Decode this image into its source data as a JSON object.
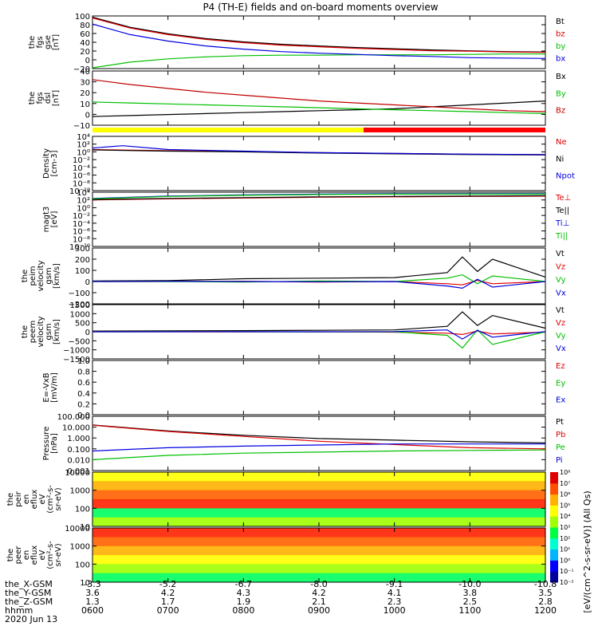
{
  "title": "P4 (TH-E) fields and on-board moments overview",
  "ephemeris": {
    "row_labels": [
      "the_X-GSM",
      "the_Y-GSM",
      "the_Z-GSM",
      "hhmm",
      "2020 Jun 13"
    ],
    "columns": [
      {
        "x": "-3.3",
        "y": "3.6",
        "z": "1.3",
        "t": "0600"
      },
      {
        "x": "-5.2",
        "y": "4.2",
        "z": "1.7",
        "t": "0700"
      },
      {
        "x": "-6.7",
        "y": "4.3",
        "z": "1.9",
        "t": "0800"
      },
      {
        "x": "-8.0",
        "y": "4.2",
        "z": "2.1",
        "t": "0900"
      },
      {
        "x": "-9.1",
        "y": "4.1",
        "z": "2.3",
        "t": "1000"
      },
      {
        "x": "-10.0",
        "y": "3.8",
        "z": "2.5",
        "t": "1100"
      },
      {
        "x": "-10.8",
        "y": "3.5",
        "z": "2.8",
        "t": "1200"
      }
    ]
  },
  "colorbar": {
    "label": "[eV/(cm^2-s-sr-eV)] (All Qs)",
    "colors": [
      "#0000a0",
      "#0000ff",
      "#00b4ff",
      "#00ffd0",
      "#00ff40",
      "#a0ff00",
      "#ffff00",
      "#ffb000",
      "#ff5000",
      "#e00000"
    ],
    "ticks": [
      "10⁸",
      "10⁷",
      "10⁶",
      "10⁵",
      "10⁴",
      "10³",
      "10²",
      "10¹",
      "10⁰",
      "10⁻¹",
      "10⁻²"
    ]
  },
  "chart_data": [
    {
      "type": "line",
      "panel": "fgs_gse",
      "ylabel_lines": [
        "the",
        "fgs",
        "gse",
        "[nT]"
      ],
      "yticks": [
        "100",
        "80",
        "60",
        "40",
        "20",
        "0",
        "−20"
      ],
      "ylim": [
        -30,
        100
      ],
      "series": [
        {
          "name": "Bt",
          "color": "#000000",
          "x": [
            6.0,
            6.5,
            7.0,
            7.5,
            8.0,
            8.5,
            9.0,
            9.5,
            10.0,
            10.5,
            11.0,
            11.5,
            12.0
          ],
          "y": [
            97,
            72,
            56,
            44,
            36,
            30,
            26,
            22,
            19,
            16,
            14,
            12,
            11
          ]
        },
        {
          "name": "bz",
          "color": "#e00000",
          "x": [
            6.0,
            6.5,
            7.0,
            7.5,
            8.0,
            8.5,
            9.0,
            9.5,
            10.0,
            10.5,
            11.0,
            11.5,
            12.0
          ],
          "y": [
            95,
            70,
            54,
            42,
            34,
            28,
            24,
            20,
            17,
            14,
            13,
            11,
            10
          ]
        },
        {
          "name": "by",
          "color": "#00c000",
          "x": [
            6.0,
            6.5,
            7.0,
            7.5,
            8.0,
            8.5,
            9.0,
            9.5,
            10.0,
            10.5,
            11.0,
            11.5,
            12.0
          ],
          "y": [
            -28,
            -14,
            -6,
            -1,
            2,
            3,
            3,
            4,
            4,
            4,
            5,
            6,
            6
          ]
        },
        {
          "name": "bx",
          "color": "#0000e0",
          "x": [
            6.0,
            6.5,
            7.0,
            7.5,
            8.0,
            8.5,
            9.0,
            9.5,
            10.0,
            10.5,
            11.0,
            11.5,
            12.0
          ],
          "y": [
            80,
            54,
            38,
            26,
            18,
            12,
            8,
            5,
            2,
            0,
            -3,
            -4,
            -5
          ]
        }
      ]
    },
    {
      "type": "line",
      "panel": "fgs_dsl",
      "ylabel_lines": [
        "the",
        "fgs",
        "dsl",
        "[nT]"
      ],
      "yticks": [
        "40",
        "30",
        "20",
        "10",
        "0",
        "−10"
      ],
      "ylim": [
        -16,
        40
      ],
      "series": [
        {
          "name": "Bx",
          "color": "#000000",
          "x": [
            6.0,
            6.5,
            7.0,
            7.5,
            8.0,
            8.5,
            9.0,
            9.5,
            10.0,
            10.5,
            11.0,
            11.5,
            12.0
          ],
          "y": [
            -7,
            -6,
            -5,
            -4,
            -3,
            -2,
            -1,
            0,
            1,
            3,
            5,
            7,
            9
          ]
        },
        {
          "name": "By",
          "color": "#00c000",
          "x": [
            6.0,
            6.5,
            7.0,
            7.5,
            8.0,
            8.5,
            9.0,
            9.5,
            10.0,
            10.5,
            11.0,
            11.5,
            12.0
          ],
          "y": [
            8,
            7,
            6,
            5,
            4,
            3,
            2,
            1,
            0,
            -1,
            -2,
            -3,
            -4
          ]
        },
        {
          "name": "Bz",
          "color": "#c00000",
          "x": [
            6.0,
            6.5,
            7.0,
            7.5,
            8.0,
            8.5,
            9.0,
            9.5,
            10.0,
            10.5,
            11.0,
            11.5,
            12.0
          ],
          "y": [
            31,
            26,
            22,
            18,
            15,
            12,
            9,
            7,
            5,
            3,
            1,
            -1,
            -2
          ]
        }
      ]
    },
    {
      "type": "line",
      "panel": "density",
      "ylabel_lines": [
        "Density",
        "[cm-3]"
      ],
      "yticks": [
        "10⁴",
        "10²",
        "10⁰",
        "10⁻²",
        "10⁻⁴",
        "10⁻⁶",
        "10⁻⁸",
        "10⁻¹⁰"
      ],
      "ylim": [
        -10,
        4
      ],
      "yscale": "log",
      "series": [
        {
          "name": "Ne",
          "color": "#e00000",
          "x": [
            6.0,
            7.0,
            8.0,
            9.0,
            10.0,
            11.0,
            12.0
          ],
          "y": [
            0.6,
            0.3,
            0.1,
            -0.2,
            -0.4,
            -0.6,
            -0.7
          ]
        },
        {
          "name": "Ni",
          "color": "#000000",
          "x": [
            6.0,
            7.0,
            8.0,
            9.0,
            10.0,
            11.0,
            12.0
          ],
          "y": [
            0.5,
            0.2,
            0.0,
            -0.3,
            -0.5,
            -0.7,
            -0.8
          ]
        },
        {
          "name": "Npot",
          "color": "#0000e0",
          "x": [
            6.0,
            6.4,
            7.0,
            8.0,
            9.0,
            10.0,
            11.0,
            12.0
          ],
          "y": [
            1.0,
            1.6,
            0.6,
            0.2,
            -0.2,
            -0.4,
            -0.6,
            -0.7
          ]
        }
      ]
    },
    {
      "type": "line",
      "panel": "temperature",
      "ylabel_lines": [
        "magt3",
        "[eV]"
      ],
      "yticks": [
        "10⁴",
        "10²",
        "10⁰",
        "10⁻²",
        "10⁻⁴",
        "10⁻⁶",
        "10⁻⁸",
        "10⁻¹⁰"
      ],
      "ylim": [
        -10,
        4
      ],
      "yscale": "log",
      "series": [
        {
          "name": "Te⊥",
          "color": "#e00000",
          "x": [
            6.0,
            7.0,
            8.0,
            9.0,
            10.0,
            11.0,
            12.0
          ],
          "y": [
            2.0,
            2.3,
            2.5,
            2.7,
            2.8,
            2.9,
            3.0
          ]
        },
        {
          "name": "Te||",
          "color": "#000000",
          "x": [
            6.0,
            7.0,
            8.0,
            9.0,
            10.0,
            11.0,
            12.0
          ],
          "y": [
            2.1,
            2.4,
            2.6,
            2.8,
            2.9,
            3.0,
            3.1
          ]
        },
        {
          "name": "Ti⊥",
          "color": "#0000e0",
          "x": [
            6.0,
            7.0,
            8.0,
            9.0,
            10.0,
            11.0,
            12.0
          ],
          "y": [
            2.4,
            3.0,
            3.3,
            3.5,
            3.6,
            3.6,
            3.6
          ]
        },
        {
          "name": "Ti||",
          "color": "#00c000",
          "x": [
            6.0,
            7.0,
            8.0,
            9.0,
            10.0,
            11.0,
            12.0
          ],
          "y": [
            2.3,
            2.9,
            3.2,
            3.4,
            3.5,
            3.5,
            3.5
          ]
        }
      ]
    },
    {
      "type": "line",
      "panel": "peim_velocity",
      "ylabel_lines": [
        "the",
        "peim",
        "velocity",
        "gsm",
        "[km/s]"
      ],
      "yticks": [
        "300",
        "200",
        "100",
        "0",
        "−100",
        "−200"
      ],
      "ylim": [
        -200,
        300
      ],
      "series": [
        {
          "name": "Vt",
          "color": "#000000",
          "x": [
            6.0,
            7.0,
            8.0,
            9.0,
            10.0,
            10.7,
            10.9,
            11.1,
            11.3,
            12.0
          ],
          "y": [
            5,
            8,
            25,
            30,
            35,
            80,
            220,
            90,
            200,
            40
          ]
        },
        {
          "name": "Vz",
          "color": "#e00000",
          "x": [
            6.0,
            7.0,
            8.0,
            9.0,
            10.0,
            10.7,
            10.9,
            11.1,
            11.3,
            12.0
          ],
          "y": [
            0,
            0,
            2,
            -5,
            0,
            -20,
            -30,
            10,
            -20,
            0
          ]
        },
        {
          "name": "Vy",
          "color": "#00c000",
          "x": [
            6.0,
            7.0,
            8.0,
            9.0,
            10.0,
            10.7,
            10.9,
            11.1,
            11.3,
            12.0
          ],
          "y": [
            0,
            0,
            -5,
            5,
            0,
            30,
            60,
            -20,
            50,
            0
          ]
        },
        {
          "name": "Vx",
          "color": "#0000e0",
          "x": [
            6.0,
            7.0,
            8.0,
            9.0,
            10.0,
            10.7,
            10.9,
            11.1,
            11.3,
            12.0
          ],
          "y": [
            0,
            2,
            0,
            -2,
            0,
            -40,
            -60,
            20,
            -50,
            0
          ]
        }
      ]
    },
    {
      "type": "line",
      "panel": "peem_velocity",
      "ylabel_lines": [
        "the",
        "peem",
        "velocity",
        "gsm",
        "[km/s]"
      ],
      "yticks": [
        "1500",
        "1000",
        "500",
        "0",
        "−500",
        "−1000",
        "−1500"
      ],
      "ylim": [
        -1500,
        1500
      ],
      "series": [
        {
          "name": "Vt",
          "color": "#000000",
          "x": [
            6.0,
            7.0,
            8.0,
            9.0,
            10.0,
            10.7,
            10.9,
            11.1,
            11.3,
            12.0
          ],
          "y": [
            40,
            50,
            60,
            80,
            100,
            300,
            1100,
            350,
            900,
            200
          ]
        },
        {
          "name": "Vz",
          "color": "#e00000",
          "x": [
            6.0,
            7.0,
            8.0,
            9.0,
            10.0,
            10.7,
            10.9,
            11.1,
            11.3,
            12.0
          ],
          "y": [
            0,
            0,
            -10,
            0,
            -20,
            -80,
            -150,
            40,
            -120,
            -20
          ]
        },
        {
          "name": "Vy",
          "color": "#00c000",
          "x": [
            6.0,
            7.0,
            8.0,
            9.0,
            10.0,
            10.7,
            10.9,
            11.1,
            11.3,
            12.0
          ],
          "y": [
            0,
            5,
            0,
            -10,
            0,
            -200,
            -900,
            100,
            -700,
            0
          ]
        },
        {
          "name": "Vx",
          "color": "#0000e0",
          "x": [
            6.0,
            7.0,
            8.0,
            9.0,
            10.0,
            10.7,
            10.9,
            11.1,
            11.3,
            12.0
          ],
          "y": [
            0,
            0,
            5,
            0,
            10,
            100,
            -400,
            80,
            -300,
            10
          ]
        }
      ]
    },
    {
      "type": "line",
      "panel": "efield",
      "ylabel_lines": [
        "E=-VxB",
        "[mV/m]"
      ],
      "yticks": [
        "1.0",
        "0.8",
        "0.6",
        "0.4",
        "0.2",
        "0.0"
      ],
      "ylim": [
        0,
        1
      ],
      "legend": [
        {
          "name": "Ez",
          "color": "#e00000"
        },
        {
          "name": "Ey",
          "color": "#00c000"
        },
        {
          "name": "Ex",
          "color": "#0000e0"
        }
      ],
      "series": []
    },
    {
      "type": "line",
      "panel": "pressure",
      "ylabel_lines": [
        "Pressure",
        "[nPa]"
      ],
      "yticks": [
        "100.000",
        "10.000",
        "1.000",
        "0.100",
        "0.010",
        "0.001"
      ],
      "ylim": [
        -3,
        2
      ],
      "yscale": "log",
      "series": [
        {
          "name": "Pt",
          "color": "#000000",
          "x": [
            6.0,
            7.0,
            8.0,
            9.0,
            10.0,
            11.0,
            12.0
          ],
          "y": [
            1.2,
            0.65,
            0.25,
            -0.05,
            -0.2,
            -0.35,
            -0.45
          ]
        },
        {
          "name": "Pb",
          "color": "#e00000",
          "x": [
            6.0,
            7.0,
            8.0,
            9.0,
            10.0,
            11.0,
            12.0
          ],
          "y": [
            1.18,
            0.6,
            0.15,
            -0.3,
            -0.6,
            -0.9,
            -1.0
          ]
        },
        {
          "name": "Pe",
          "color": "#00c000",
          "x": [
            6.0,
            7.0,
            8.0,
            9.0,
            10.0,
            11.0,
            12.0
          ],
          "y": [
            -2.0,
            -1.6,
            -1.4,
            -1.3,
            -1.2,
            -1.15,
            -1.1
          ]
        },
        {
          "name": "Pi",
          "color": "#0000e0",
          "x": [
            6.0,
            7.0,
            8.0,
            9.0,
            10.0,
            11.0,
            12.0
          ],
          "y": [
            -1.2,
            -0.9,
            -0.75,
            -0.65,
            -0.55,
            -0.55,
            -0.55
          ]
        }
      ]
    },
    {
      "type": "heatmap",
      "panel": "peir_spectrogram",
      "ylabel_lines": [
        "the",
        "peir",
        "en",
        "eflux",
        "eV",
        "(cm²-s-",
        "sr-eV)"
      ],
      "yticks": [
        "10000",
        "1000",
        "100",
        "10"
      ],
      "ylim": [
        1,
        4.3
      ],
      "yscale": "log"
    },
    {
      "type": "heatmap",
      "panel": "peer_spectrogram",
      "ylabel_lines": [
        "the",
        "peer",
        "en",
        "eflux",
        "eV",
        "(cm²-s-",
        "sr-eV)"
      ],
      "yticks": [
        "10000",
        "1000",
        "100",
        "10"
      ],
      "ylim": [
        0.8,
        4.3
      ],
      "yscale": "log"
    }
  ]
}
